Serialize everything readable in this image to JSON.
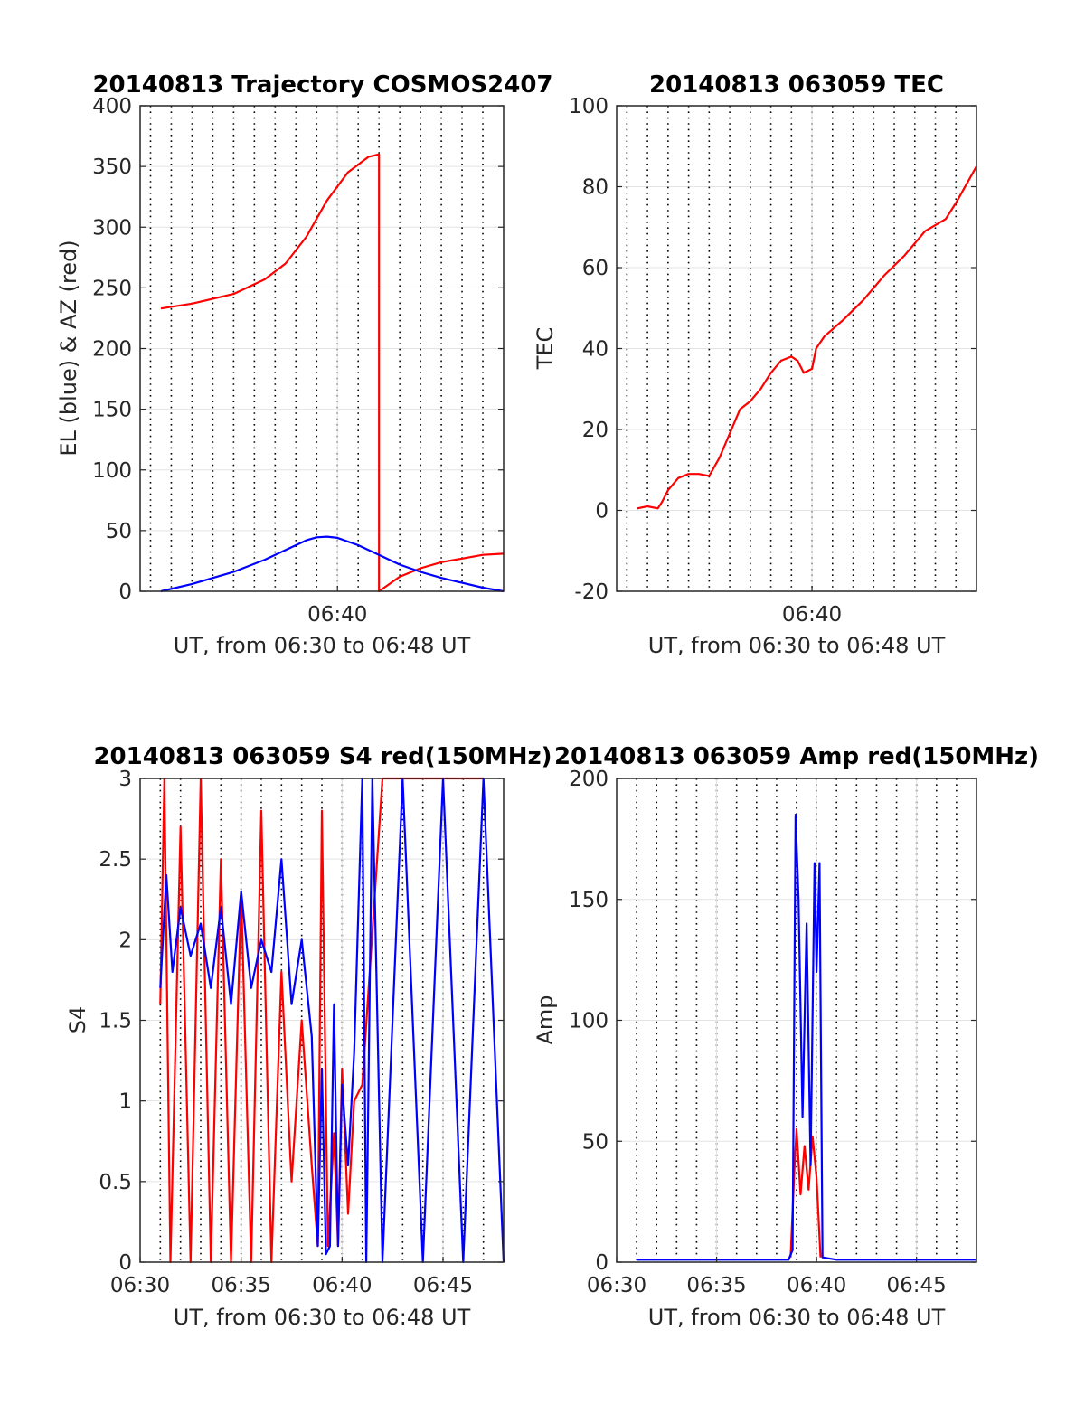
{
  "chart_data": [
    {
      "type": "line",
      "title": "20140813 Trajectory COSMOS2407",
      "xlabel": "UT, from 06:30 to 06:48 UT",
      "ylabel": "EL (blue) & AZ (red)",
      "xlim": [
        30.5,
        48
      ],
      "ylim": [
        0,
        400
      ],
      "yticks": [
        0,
        50,
        100,
        150,
        200,
        250,
        300,
        350,
        400
      ],
      "xticks": [
        {
          "v": 40,
          "label": "06:40"
        }
      ],
      "grid": true,
      "series": [
        {
          "color": "#ff0000",
          "x": [
            31.5,
            33,
            35,
            36.5,
            37.5,
            38.5,
            39.5,
            40.5,
            41.5,
            42.0,
            42.0,
            43,
            44,
            45,
            46,
            47,
            48
          ],
          "y": [
            233,
            237,
            245,
            257,
            270,
            292,
            322,
            345,
            358,
            360,
            0,
            12,
            19,
            24,
            27,
            30,
            31
          ]
        },
        {
          "color": "#0000ff",
          "x": [
            31.5,
            33,
            35,
            36.5,
            37.5,
            38.5,
            39.0,
            39.5,
            40.0,
            41,
            42,
            43,
            44,
            45,
            46,
            47,
            48
          ],
          "y": [
            0,
            6,
            16,
            26,
            34,
            42,
            44.5,
            45,
            44,
            38,
            30,
            22,
            16,
            11,
            7,
            3,
            0
          ]
        }
      ]
    },
    {
      "type": "line",
      "title": "20140813 063059 TEC",
      "xlabel": "UT, from 06:30 to 06:48 UT",
      "ylabel": "TEC",
      "xlim": [
        30.5,
        48
      ],
      "ylim": [
        -20,
        100
      ],
      "yticks": [
        -20,
        0,
        20,
        40,
        60,
        80,
        100
      ],
      "xticks": [
        {
          "v": 40,
          "label": "06:40"
        }
      ],
      "grid": true,
      "series": [
        {
          "color": "#ff0000",
          "x": [
            31.5,
            32,
            32.5,
            32.7,
            33,
            33.5,
            34,
            34.5,
            35,
            35.5,
            36,
            36.5,
            37,
            37.5,
            38,
            38.5,
            39,
            39.3,
            39.6,
            40,
            40.2,
            40.6,
            41.5,
            42.5,
            43.5,
            44.5,
            45.5,
            46.5,
            47,
            48
          ],
          "y": [
            0.5,
            1,
            0.5,
            2,
            5,
            8,
            9,
            9,
            8.5,
            13,
            19,
            25,
            27,
            30,
            34,
            37,
            38,
            37,
            34,
            35,
            40,
            43,
            47,
            52,
            58,
            63,
            69,
            72,
            76,
            85
          ]
        }
      ]
    },
    {
      "type": "line",
      "title": "20140813 063059 S4 red(150MHz)",
      "xlabel": "UT, from 06:30 to 06:48 UT",
      "ylabel": "S4",
      "xlim": [
        30,
        48
      ],
      "ylim": [
        0,
        3
      ],
      "yticks": [
        0,
        0.5,
        1,
        1.5,
        2,
        2.5,
        3
      ],
      "ytick_labels": [
        "0",
        "0.5",
        "1",
        "1.5",
        "2",
        "2.5",
        "3"
      ],
      "xticks": [
        {
          "v": 30,
          "label": "06:30"
        },
        {
          "v": 35,
          "label": "06:35"
        },
        {
          "v": 40,
          "label": "06:40"
        },
        {
          "v": 45,
          "label": "06:45"
        }
      ],
      "grid": true,
      "series": [
        {
          "color": "#ff0000",
          "x": [
            31.0,
            31.2,
            31.5,
            32.0,
            32.5,
            33.0,
            33.5,
            34.0,
            34.5,
            35.0,
            35.5,
            36.0,
            36.5,
            37.0,
            37.5,
            38.0,
            38.5,
            38.8,
            39.0,
            39.3,
            39.6,
            39.8,
            40.0,
            40.3,
            40.6,
            41.0,
            42.0,
            44.0,
            45.0,
            46.0,
            47.0
          ],
          "y": [
            1.6,
            3.0,
            0.0,
            2.7,
            0.0,
            3.0,
            0.0,
            2.5,
            0.0,
            2.3,
            0.0,
            2.8,
            0.0,
            1.8,
            0.5,
            1.5,
            0.6,
            0.1,
            2.8,
            0.1,
            0.8,
            0.1,
            1.2,
            0.3,
            1.0,
            1.1,
            3.0,
            3.0,
            3.0,
            3.0,
            3.0
          ]
        },
        {
          "color": "#0000ff",
          "x": [
            31.0,
            31.3,
            31.6,
            32.0,
            32.5,
            33.0,
            33.5,
            34.0,
            34.5,
            35.0,
            35.5,
            36.0,
            36.5,
            37.0,
            37.5,
            38.0,
            38.5,
            38.8,
            39.0,
            39.2,
            39.4,
            39.6,
            39.8,
            40.0,
            40.3,
            40.6,
            41.0,
            41.2,
            41.5,
            42.0,
            43.0,
            44.0,
            45.0,
            46.0,
            47.0,
            48.0
          ],
          "y": [
            1.7,
            2.4,
            1.8,
            2.2,
            1.9,
            2.1,
            1.7,
            2.2,
            1.6,
            2.3,
            1.7,
            2.0,
            1.8,
            2.5,
            1.6,
            2.0,
            1.4,
            0.1,
            1.2,
            0.05,
            0.1,
            1.6,
            0.1,
            1.1,
            0.6,
            1.3,
            3.0,
            0.0,
            3.0,
            0.0,
            3.0,
            0.0,
            3.0,
            0.0,
            3.0,
            0.0
          ]
        }
      ]
    },
    {
      "type": "line",
      "title": "20140813 063059 Amp red(150MHz)",
      "xlabel": "UT, from 06:30 to 06:48 UT",
      "ylabel": "Amp",
      "xlim": [
        30,
        48
      ],
      "ylim": [
        0,
        200
      ],
      "yticks": [
        0,
        50,
        100,
        150,
        200
      ],
      "xticks": [
        {
          "v": 30,
          "label": "06:30"
        },
        {
          "v": 35,
          "label": "06:35"
        },
        {
          "v": 40,
          "label": "06:40"
        },
        {
          "v": 45,
          "label": "06:45"
        }
      ],
      "grid": true,
      "series": [
        {
          "color": "#ff0000",
          "x": [
            38.7,
            38.9,
            39.0,
            39.2,
            39.4,
            39.6,
            39.8,
            40.0,
            40.2
          ],
          "y": [
            2,
            40,
            55,
            28,
            48,
            30,
            52,
            35,
            2
          ]
        },
        {
          "color": "#0000ff",
          "x": [
            31,
            33,
            35,
            36.5,
            38.0,
            38.6,
            38.8,
            38.95,
            39.1,
            39.3,
            39.5,
            39.7,
            39.9,
            40.0,
            40.15,
            40.3,
            41,
            42,
            44,
            46,
            48
          ],
          "y": [
            1,
            1,
            1,
            1,
            1,
            1,
            5,
            185,
            150,
            60,
            140,
            40,
            165,
            120,
            165,
            2,
            1,
            1,
            1,
            1,
            1
          ]
        }
      ]
    }
  ]
}
